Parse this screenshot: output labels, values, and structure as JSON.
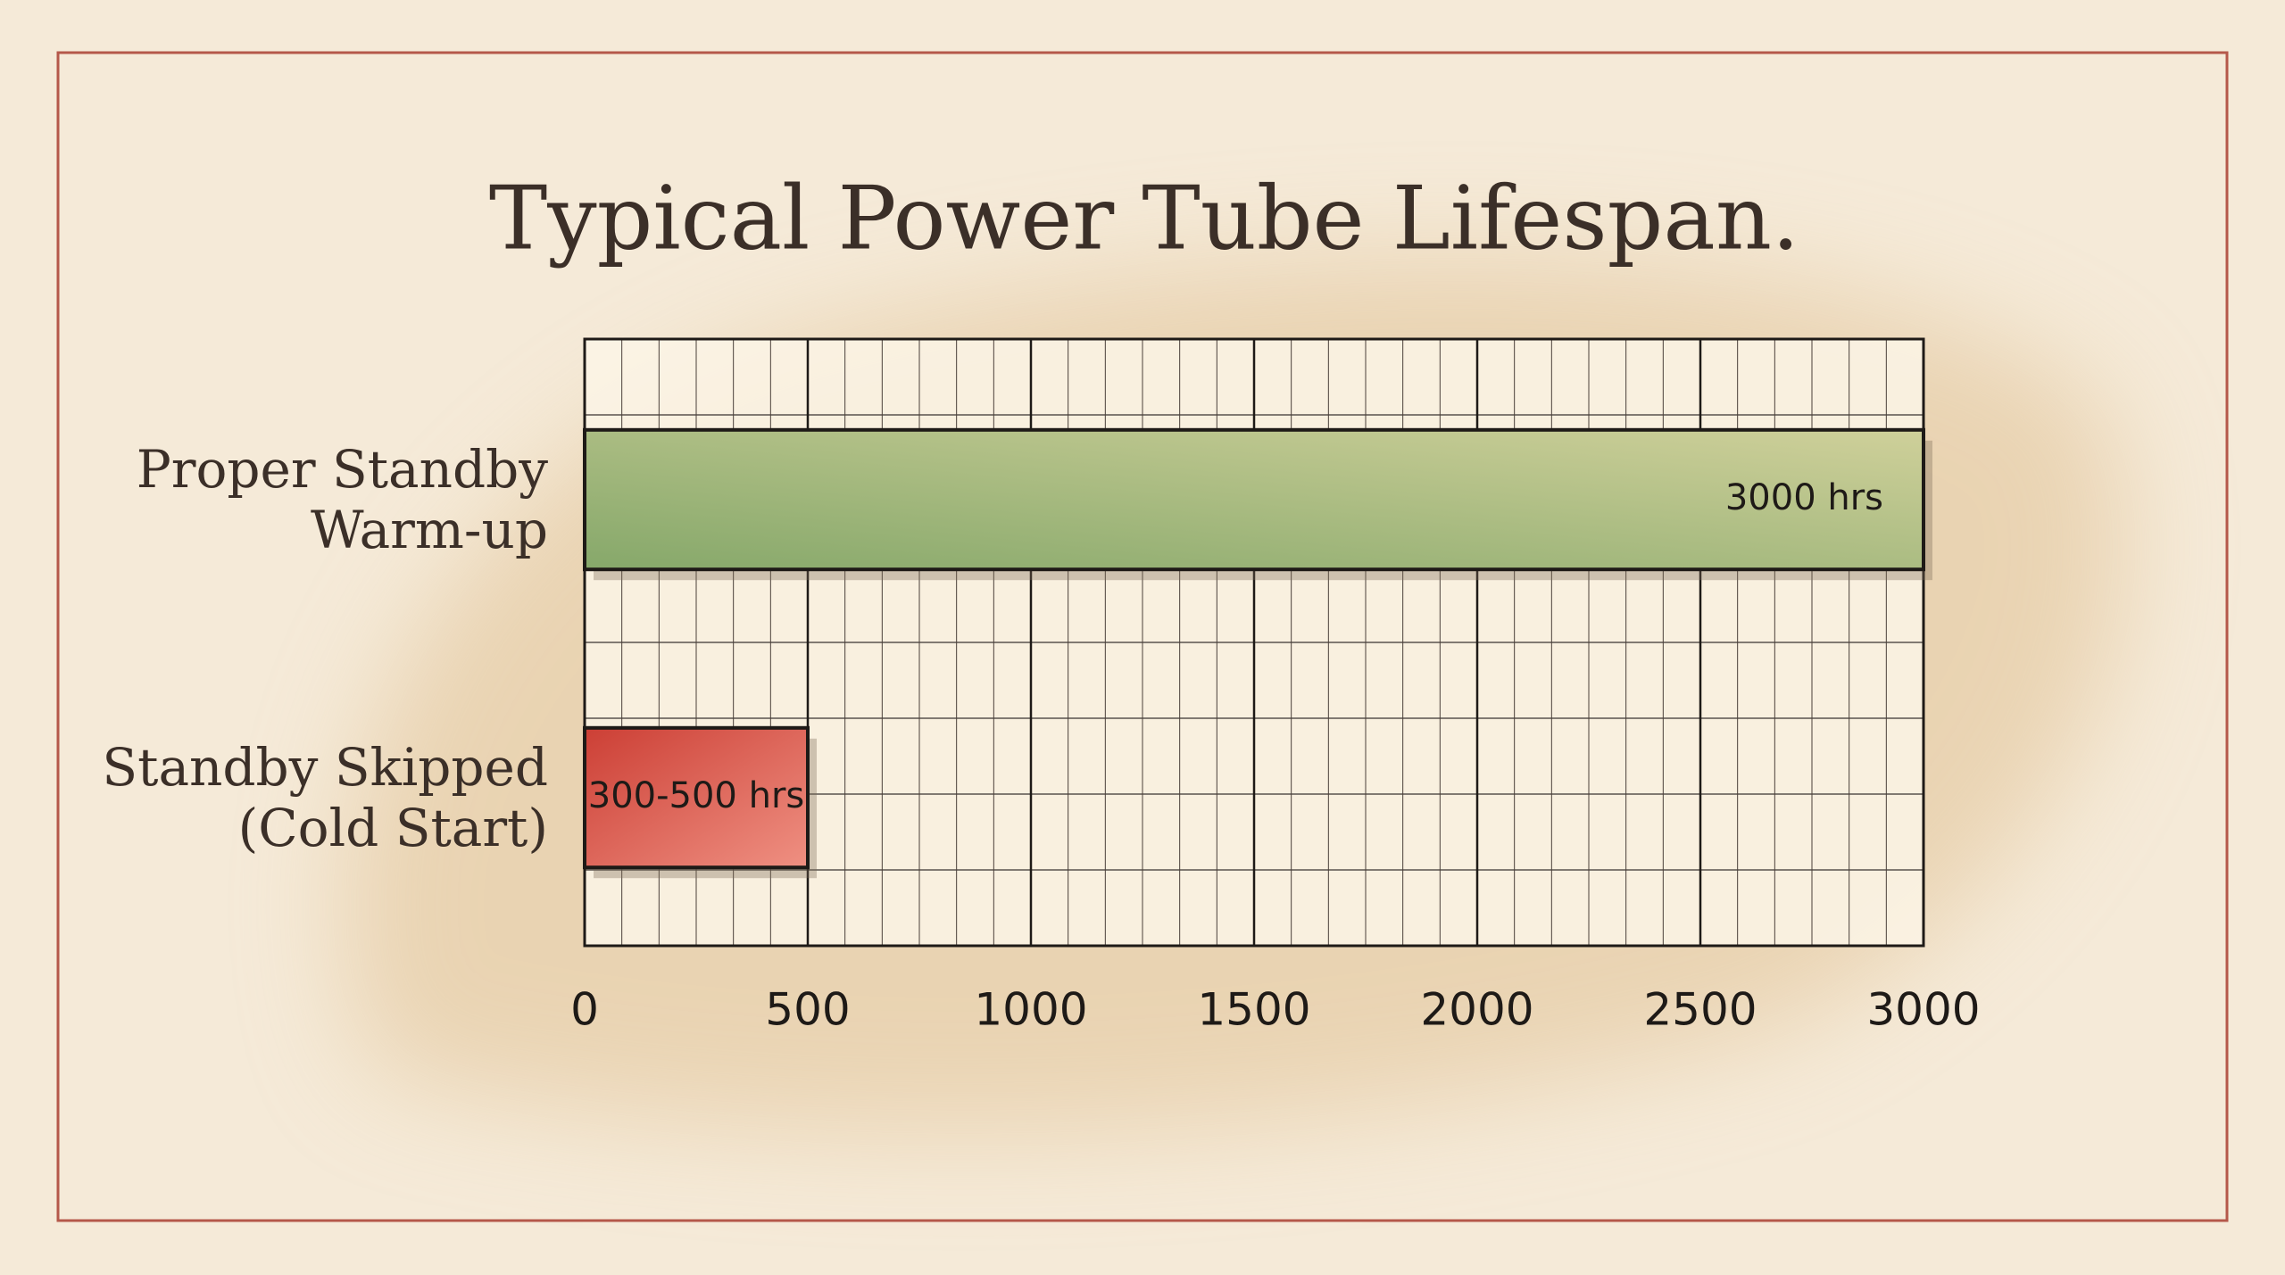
{
  "chart_data": {
    "type": "hbar",
    "title": "Typical Power Tube Lifespan.",
    "categories": [
      "Proper Standby\nWarm-up",
      "Standby Skipped\n(Cold Start)"
    ],
    "values": [
      3000,
      500
    ],
    "value_labels": [
      "3000 hrs",
      "300-500 hrs"
    ],
    "colors": [
      "#93ad74",
      "#d9574a"
    ],
    "xlim": [
      0,
      3000
    ],
    "xticks": [
      0,
      500,
      1000,
      1500,
      2000,
      2500,
      3000
    ],
    "grid": true,
    "minor_per_major": 6
  }
}
